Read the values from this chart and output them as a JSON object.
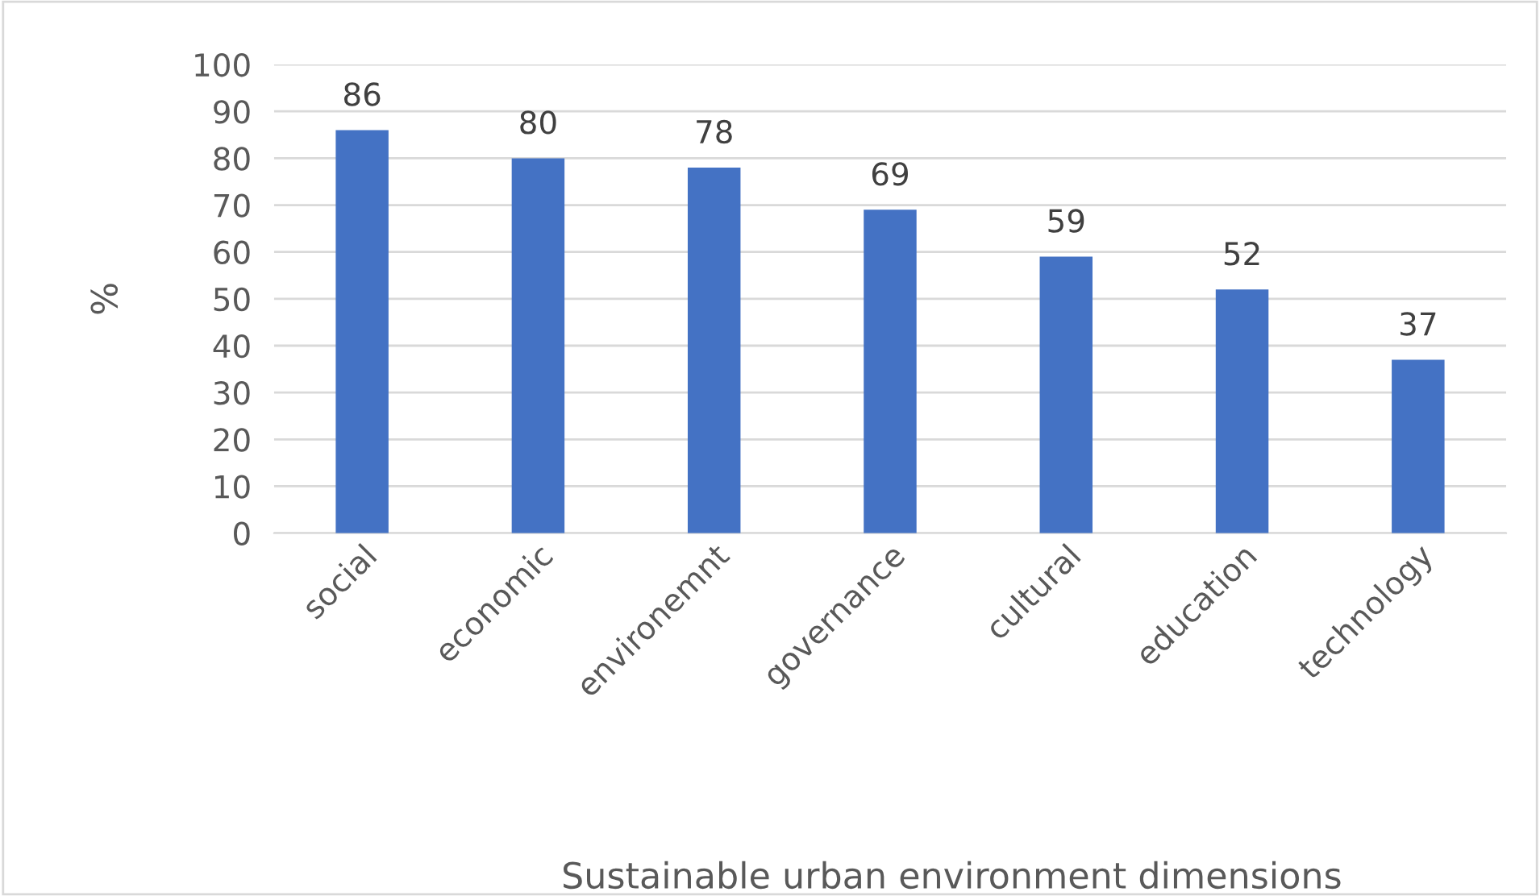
{
  "chart_data": {
    "type": "bar",
    "xlabel": "Sustainable urban environment dimensions",
    "ylabel": "%",
    "categories": [
      "social",
      "economic",
      "environemnt",
      "governance",
      "cultural",
      "education",
      "technology"
    ],
    "values": [
      86,
      80,
      78,
      69,
      59,
      52,
      37
    ],
    "color": "#4472c4",
    "ylim": [
      0,
      100
    ],
    "yticks": [
      0,
      10,
      20,
      30,
      40,
      50,
      60,
      70,
      80,
      90,
      100
    ],
    "grid": "y",
    "data_labels": true
  }
}
